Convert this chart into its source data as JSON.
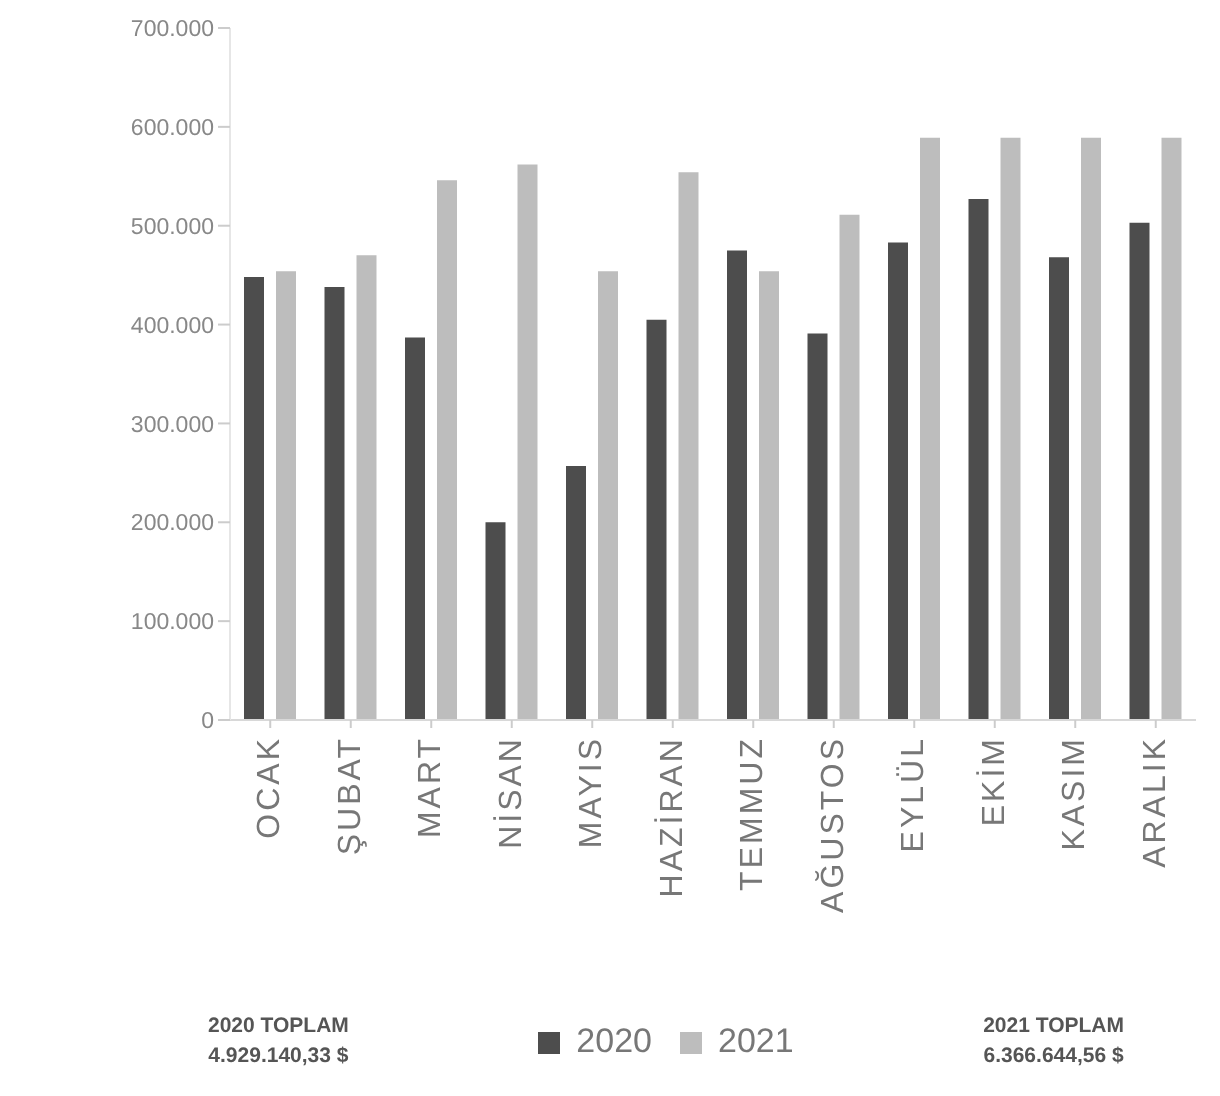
{
  "chart_data": {
    "type": "bar",
    "categories": [
      "OCAK",
      "ŞUBAT",
      "MART",
      "NİSAN",
      "MAYIS",
      "HAZİRAN",
      "TEMMUZ",
      "AĞUSTOS",
      "EYLÜL",
      "EKİM",
      "KASIM",
      "ARALIK"
    ],
    "series": [
      {
        "name": "2020",
        "color": "#4d4d4d",
        "values": [
          448000,
          438000,
          387000,
          200000,
          257000,
          405000,
          475000,
          391000,
          483000,
          527000,
          468000,
          503000
        ]
      },
      {
        "name": "2021",
        "color": "#bdbdbd",
        "values": [
          454000,
          470000,
          546000,
          562000,
          454000,
          554000,
          454000,
          511000,
          589000,
          589000,
          589000,
          589000
        ]
      }
    ],
    "ylim": [
      0,
      700000
    ],
    "yticks": [
      {
        "value": 0,
        "label": "0"
      },
      {
        "value": 100000,
        "label": "100.000"
      },
      {
        "value": 200000,
        "label": "200.000"
      },
      {
        "value": 300000,
        "label": "300.000"
      },
      {
        "value": 400000,
        "label": "400.000"
      },
      {
        "value": 500000,
        "label": "500.000"
      },
      {
        "value": 600000,
        "label": "600.000"
      },
      {
        "value": 700000,
        "label": "700.000"
      }
    ],
    "legend": "bottom",
    "annotations": [
      "2020 TOPLAM\n4.929.140,33 $",
      "2021 TOPLAM\n6.366.644,56 $"
    ]
  }
}
